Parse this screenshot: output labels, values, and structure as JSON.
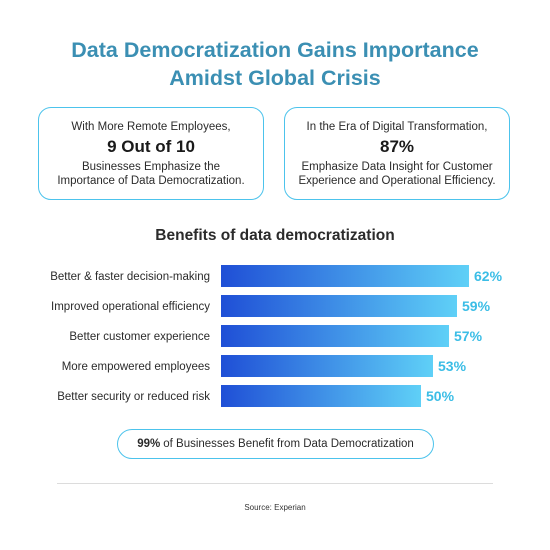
{
  "header": {
    "title_line1": "Data Democratization Gains Importance",
    "title_line2": "Amidst Global Crisis"
  },
  "cards": [
    {
      "pre": "With More Remote Employees,",
      "big": "9 Out of 10",
      "post_line1": "Businesses Emphasize the",
      "post_line2": "Importance of Data Democratization."
    },
    {
      "pre": "In the Era of Digital Transformation,",
      "big": "87%",
      "post_line1": "Emphasize Data Insight for Customer",
      "post_line2": "Experience and Operational Efficiency."
    }
  ],
  "chart_data": {
    "type": "bar",
    "orientation": "horizontal",
    "title": "Benefits of data democratization",
    "categories": [
      "Better & faster decision-making",
      "Improved operational efficiency",
      "Better customer experience",
      "More empowered employees",
      "Better security or reduced risk"
    ],
    "values": [
      62,
      59,
      57,
      53,
      50
    ],
    "value_labels": [
      "62%",
      "59%",
      "57%",
      "53%",
      "50%"
    ],
    "unit": "%",
    "grid": false,
    "legend": "none",
    "colors": {
      "bar_start": "#1f4fd6",
      "bar_end": "#5fd0f7",
      "label": "#3bbde6",
      "category_text": "#2b2b2b"
    }
  },
  "footer_pill": {
    "bold": "99%",
    "text": "of Businesses Benefit from Data Democratization"
  },
  "source": "Source: Experian",
  "colors": {
    "title": "#3b8fb3",
    "border": "#4cc3ec"
  }
}
